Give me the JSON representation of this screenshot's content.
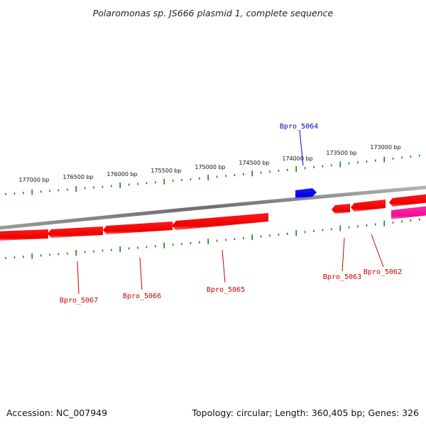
{
  "title": "Polaromonas sp. JS666 plasmid 1, complete sequence",
  "footer": {
    "accession": "Accession: NC_007949",
    "summary": "Topology: circular; Length: 360,405 bp; Genes: 326"
  },
  "colors": {
    "backbone": "#8a8a8a",
    "tick": "#118811",
    "reverse_gene": "#ff0000",
    "forward_gene": "#0000ee",
    "rna_gene": "#ff2aa0",
    "label_reverse": "#cc0000",
    "label_forward": "#0000cc"
  },
  "ticks": {
    "major_labels": [
      "177000 bp",
      "176500 bp",
      "176000 bp",
      "175500 bp",
      "175000 bp",
      "174500 bp",
      "174000 bp",
      "173500 bp",
      "173000 bp"
    ]
  },
  "genes": [
    {
      "name": "Bpro_5064",
      "strand": "forward"
    },
    {
      "name": "Bpro_5063",
      "strand": "reverse"
    },
    {
      "name": "Bpro_5062",
      "strand": "reverse"
    },
    {
      "name": "Bpro_5065",
      "strand": "reverse"
    },
    {
      "name": "Bpro_5066",
      "strand": "reverse"
    },
    {
      "name": "Bpro_5067",
      "strand": "reverse"
    }
  ]
}
